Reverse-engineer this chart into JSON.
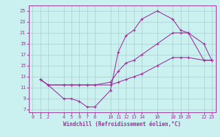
{
  "title": "",
  "xlabel": "Windchill (Refroidissement éolien,°C)",
  "ylabel": "",
  "bg_color": "#caf0f0",
  "line_color": "#993399",
  "grid_color": "#aacccc",
  "xlim": [
    -0.5,
    23.5
  ],
  "ylim": [
    6.5,
    26.0
  ],
  "xticks": [
    0,
    1,
    2,
    4,
    5,
    6,
    7,
    8,
    10,
    11,
    12,
    13,
    14,
    16,
    18,
    19,
    20,
    22,
    23
  ],
  "yticks": [
    7,
    9,
    11,
    13,
    15,
    17,
    19,
    21,
    23,
    25
  ],
  "line1_x": [
    1,
    2,
    4,
    5,
    6,
    7,
    8,
    10,
    11,
    12,
    13,
    14,
    16,
    18,
    19,
    20,
    22,
    23
  ],
  "line1_y": [
    12.5,
    11.5,
    9.0,
    9.0,
    8.5,
    7.5,
    7.5,
    10.5,
    17.5,
    20.5,
    21.5,
    23.5,
    25.0,
    23.5,
    21.5,
    21.0,
    16.0,
    16.0
  ],
  "line2_x": [
    1,
    2,
    4,
    5,
    6,
    7,
    8,
    10,
    11,
    12,
    13,
    14,
    16,
    18,
    19,
    20,
    22,
    23
  ],
  "line2_y": [
    12.5,
    11.5,
    11.5,
    11.5,
    11.5,
    11.5,
    11.5,
    12.0,
    14.0,
    15.5,
    16.0,
    17.0,
    19.0,
    21.0,
    21.0,
    21.0,
    19.0,
    16.0
  ],
  "line3_x": [
    1,
    2,
    4,
    5,
    6,
    7,
    8,
    10,
    11,
    12,
    13,
    14,
    16,
    18,
    19,
    20,
    22,
    23
  ],
  "line3_y": [
    12.5,
    11.5,
    11.5,
    11.5,
    11.5,
    11.5,
    11.5,
    11.5,
    12.0,
    12.5,
    13.0,
    13.5,
    15.0,
    16.5,
    16.5,
    16.5,
    16.0,
    16.0
  ],
  "tick_fontsize": 5.0,
  "xlabel_fontsize": 5.5
}
